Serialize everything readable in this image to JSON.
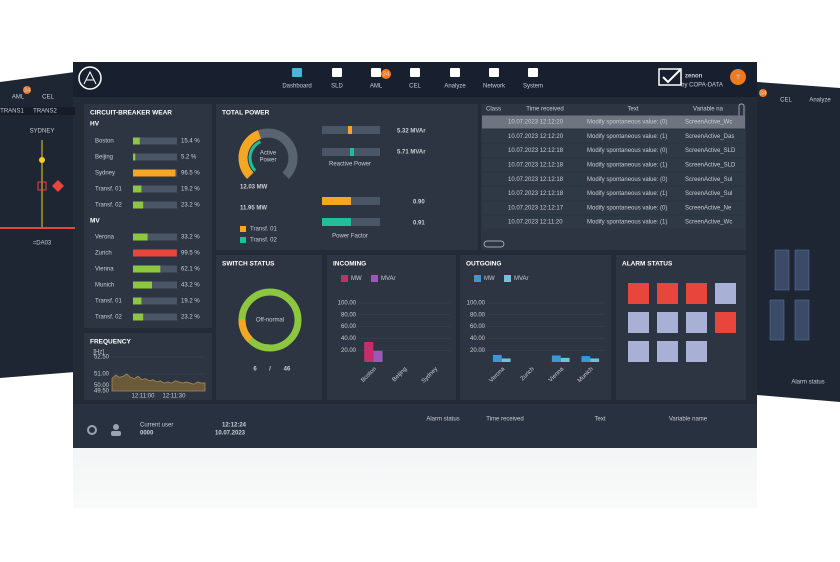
{
  "nav": {
    "items": [
      "Dashboard",
      "SLD",
      "AML",
      "CEL",
      "Analyze",
      "Network",
      "System"
    ],
    "badge": "34",
    "brand": "zenon",
    "brand_sub": "by COPA-DATA",
    "help": "?"
  },
  "side_left": {
    "tabs": [
      "AML",
      "CEL"
    ],
    "badge": "34",
    "feeders": [
      "TRANS1",
      "TRANS2"
    ],
    "station": "SYDNEY",
    "bay": "=DA03"
  },
  "side_right": {
    "badge": "34",
    "tabs": [
      "CEL",
      "Analyze"
    ],
    "footer": "Alarm status"
  },
  "circuit_breaker_wear": {
    "title": "CIRCUIT-BREAKER WEAR",
    "groups": [
      {
        "name": "HV",
        "categories": [
          "Boston",
          "Beijing",
          "Sydney",
          "Transf. 01",
          "Transf. 02"
        ],
        "values": [
          15.4,
          5.2,
          96.5,
          19.2,
          23.2
        ],
        "value_labels": [
          "15.4 %",
          "5.2 %",
          "96.5 %",
          "19.2 %",
          "23.2 %"
        ],
        "colors": [
          "#8dc63f",
          "#8dc63f",
          "#f5a623",
          "#8dc63f",
          "#8dc63f"
        ]
      },
      {
        "name": "MV",
        "categories": [
          "Verona",
          "Zurich",
          "Vienna",
          "Munich",
          "Transf. 01",
          "Transf. 02"
        ],
        "values": [
          33.2,
          99.5,
          62.1,
          43.2,
          19.2,
          23.2
        ],
        "value_labels": [
          "33.2 %",
          "99.5 %",
          "62.1 %",
          "43.2 %",
          "19.2 %",
          "23.2 %"
        ],
        "colors": [
          "#8dc63f",
          "#e8453c",
          "#8dc63f",
          "#8dc63f",
          "#8dc63f",
          "#8dc63f"
        ]
      }
    ]
  },
  "frequency": {
    "title": "FREQUENCY",
    "unit": "[Hz]",
    "color": "#a8875a",
    "ylim": [
      49.5,
      52.5
    ],
    "yticks": [
      {
        "value": 52.5,
        "label": "52.50"
      },
      {
        "value": 51,
        "label": "51.00"
      },
      {
        "value": 50,
        "label": "50.00"
      },
      {
        "value": 49.5,
        "label": "49.50"
      }
    ],
    "xtick_labels": [
      "12:11:00",
      "12:11:30"
    ],
    "values": [
      50.6,
      50.9,
      50.7,
      50.8,
      51.0,
      50.7,
      50.6,
      50.8,
      50.5,
      50.6,
      50.4,
      50.5,
      50.3,
      50.4,
      50.2,
      50.3,
      50.2,
      50.4,
      50.3,
      50.2,
      50.3,
      50.2,
      50.1,
      50.3,
      50.2,
      50.2
    ]
  },
  "total_power": {
    "title": "TOTAL POWER",
    "gauge_label": [
      "Active",
      "Power"
    ],
    "active": [
      "12.03 MW",
      "11.95 MW"
    ],
    "reactive": [
      "5.32 MVAr",
      "5.71 MVAr"
    ],
    "reactive_label": "Reactive Power",
    "power_factor": [
      "0.90",
      "0.91"
    ],
    "power_factor_label": "Power Factor",
    "legend": [
      {
        "name": "Transf. 01",
        "color": "#f5a623"
      },
      {
        "name": "Transf. 02",
        "color": "#1fbf9c"
      }
    ]
  },
  "alarm_list": {
    "headers": [
      "Class",
      "Time received",
      "Text",
      "Variable na"
    ],
    "rows": [
      [
        "10.07.2023 12:12:20",
        "Modify spontaneous value: (0)",
        "ScreenActive_Wc"
      ],
      [
        "10.07.2023 12:12:20",
        "Modify spontaneous value: (1)",
        "ScreenActive_Das"
      ],
      [
        "10.07.2023 12:12:18",
        "Modify spontaneous value: (0)",
        "ScreenActive_SLD"
      ],
      [
        "10.07.2023 12:12:18",
        "Modify spontaneous value: (1)",
        "ScreenActive_SLD"
      ],
      [
        "10.07.2023 12:12:18",
        "Modify spontaneous value: (0)",
        "ScreenActive_Sul"
      ],
      [
        "10.07.2023 12:12:18",
        "Modify spontaneous value: (1)",
        "ScreenActive_Sul"
      ],
      [
        "10.07.2023 12:12:17",
        "Modify spontaneous value: (0)",
        "ScreenActive_Ne"
      ],
      [
        "10.07.2023 12:11:20",
        "Modify spontaneous value: (1)",
        "ScreenActive_Wc"
      ]
    ]
  },
  "switch_status": {
    "title": "SWITCH STATUS",
    "label": "Off-normal",
    "off_normal": 6,
    "separator": "/",
    "total": 46
  },
  "incoming": {
    "type": "bar",
    "title": "INCOMING",
    "categories": [
      "Boston",
      "Beijing",
      "Sydney"
    ],
    "series": [
      {
        "name": "MW",
        "color": "#c2306b",
        "values": [
          34,
          0,
          0
        ]
      },
      {
        "name": "MVAr",
        "color": "#9b59b6",
        "values": [
          19,
          0,
          0
        ]
      }
    ],
    "ylim": [
      0,
      100
    ],
    "yticks": [
      {
        "value": 100,
        "label": "100.00"
      },
      {
        "value": 80,
        "label": "80.00"
      },
      {
        "value": 60,
        "label": "60.00"
      },
      {
        "value": 40,
        "label": "40.00"
      },
      {
        "value": 20,
        "label": "20.00"
      }
    ]
  },
  "outgoing": {
    "type": "bar",
    "title": "OUTGOING",
    "categories": [
      "Verona",
      "Zurich",
      "Vienna",
      "Munich"
    ],
    "series": [
      {
        "name": "MW",
        "color": "#3498db",
        "values": [
          12,
          0,
          11,
          10
        ]
      },
      {
        "name": "MVAr",
        "color": "#6fc3d8",
        "values": [
          6,
          0,
          7,
          6
        ]
      }
    ],
    "ylim": [
      0,
      100
    ],
    "yticks": [
      {
        "value": 100,
        "label": "100.00"
      },
      {
        "value": 80,
        "label": "80.00"
      },
      {
        "value": 60,
        "label": "60.00"
      },
      {
        "value": 40,
        "label": "40.00"
      },
      {
        "value": 20,
        "label": "20.00"
      }
    ]
  },
  "alarm_status": {
    "title": "ALARM STATUS"
  },
  "footer": {
    "user_label": "Current user",
    "user": "0000",
    "time": "12:12:24",
    "date": "10.07.2023",
    "headers": [
      "Alarm status",
      "Time received",
      "Text",
      "Variable name"
    ]
  }
}
